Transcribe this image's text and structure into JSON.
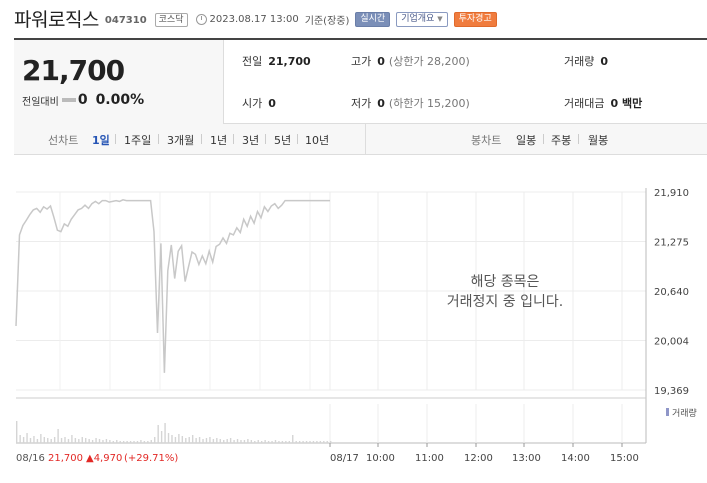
{
  "header": {
    "stock_name": "파워로직스",
    "stock_code": "047310",
    "market": "코스닥",
    "datetime": "2023.08.17 13:00",
    "basis": "기준(장중)",
    "realtime_label": "실시간",
    "company_label": "기업개요",
    "warning_label": "투자경고"
  },
  "price": {
    "current": "21,700",
    "change_label": "전일대비",
    "change_value": "0",
    "change_pct": "0.00%"
  },
  "stats": {
    "prev_close_label": "전일",
    "prev_close": "21,700",
    "high_label": "고가",
    "high": "0",
    "upper_limit": "(상한가 28,200)",
    "volume_label": "거래량",
    "volume": "0",
    "open_label": "시가",
    "open": "0",
    "low_label": "저가",
    "low": "0",
    "lower_limit": "(하한가 15,200)",
    "amount_label": "거래대금",
    "amount": "0 백만"
  },
  "periods": {
    "line_label": "선차트",
    "items": [
      "1일",
      "1주일",
      "3개월",
      "1년",
      "3년",
      "5년",
      "10년"
    ],
    "active": "1일",
    "candle_label": "봉차트",
    "candle_items": [
      "일봉",
      "주봉",
      "월봉"
    ]
  },
  "chart": {
    "halt_line1": "해당 종목은",
    "halt_line2": "거래정지 중 입니다.",
    "volume_legend": "거래량",
    "prev_date": "08/16",
    "prev_close": "21,700",
    "prev_change": "▲4,970",
    "prev_change_pct": "(+29.71%)",
    "up_color": "#e22926",
    "line_color": "#c8c8c8"
  },
  "chart_data": {
    "type": "line",
    "y_ticks": [
      "21,910",
      "21,275",
      "20,640",
      "20,004",
      "19,369"
    ],
    "y_values": [
      21910,
      21275,
      20640,
      20004,
      19369
    ],
    "ylim": [
      19369,
      21910
    ],
    "x_ticks": [
      "08/17",
      "10:00",
      "11:00",
      "12:00",
      "13:00",
      "14:00",
      "15:00"
    ],
    "series": [
      {
        "values": [
          20190,
          21360,
          21480,
          21550,
          21620,
          21680,
          21700,
          21650,
          21720,
          21690,
          21730,
          21580,
          21420,
          21400,
          21500,
          21470,
          21560,
          21620,
          21680,
          21700,
          21740,
          21700,
          21760,
          21790,
          21760,
          21800,
          21800,
          21780,
          21790,
          21800,
          21790,
          21810,
          21800,
          21800,
          21800,
          21800,
          21800,
          21800,
          21800,
          21800,
          21400,
          20100,
          21250,
          19590,
          20900,
          21230,
          20800,
          21150,
          21220,
          20760,
          20950,
          21140,
          21110,
          20980,
          21090,
          20990,
          21150,
          21010,
          21210,
          21240,
          21320,
          21250,
          21380,
          21360,
          21450,
          21390,
          21560,
          21470,
          21600,
          21510,
          21660,
          21580,
          21720,
          21660,
          21730,
          21760,
          21700,
          21740,
          21800,
          21800,
          21800,
          21800,
          21800,
          21800,
          21800,
          21800,
          21800,
          21800,
          21800,
          21800,
          21800,
          21800
        ]
      }
    ]
  }
}
